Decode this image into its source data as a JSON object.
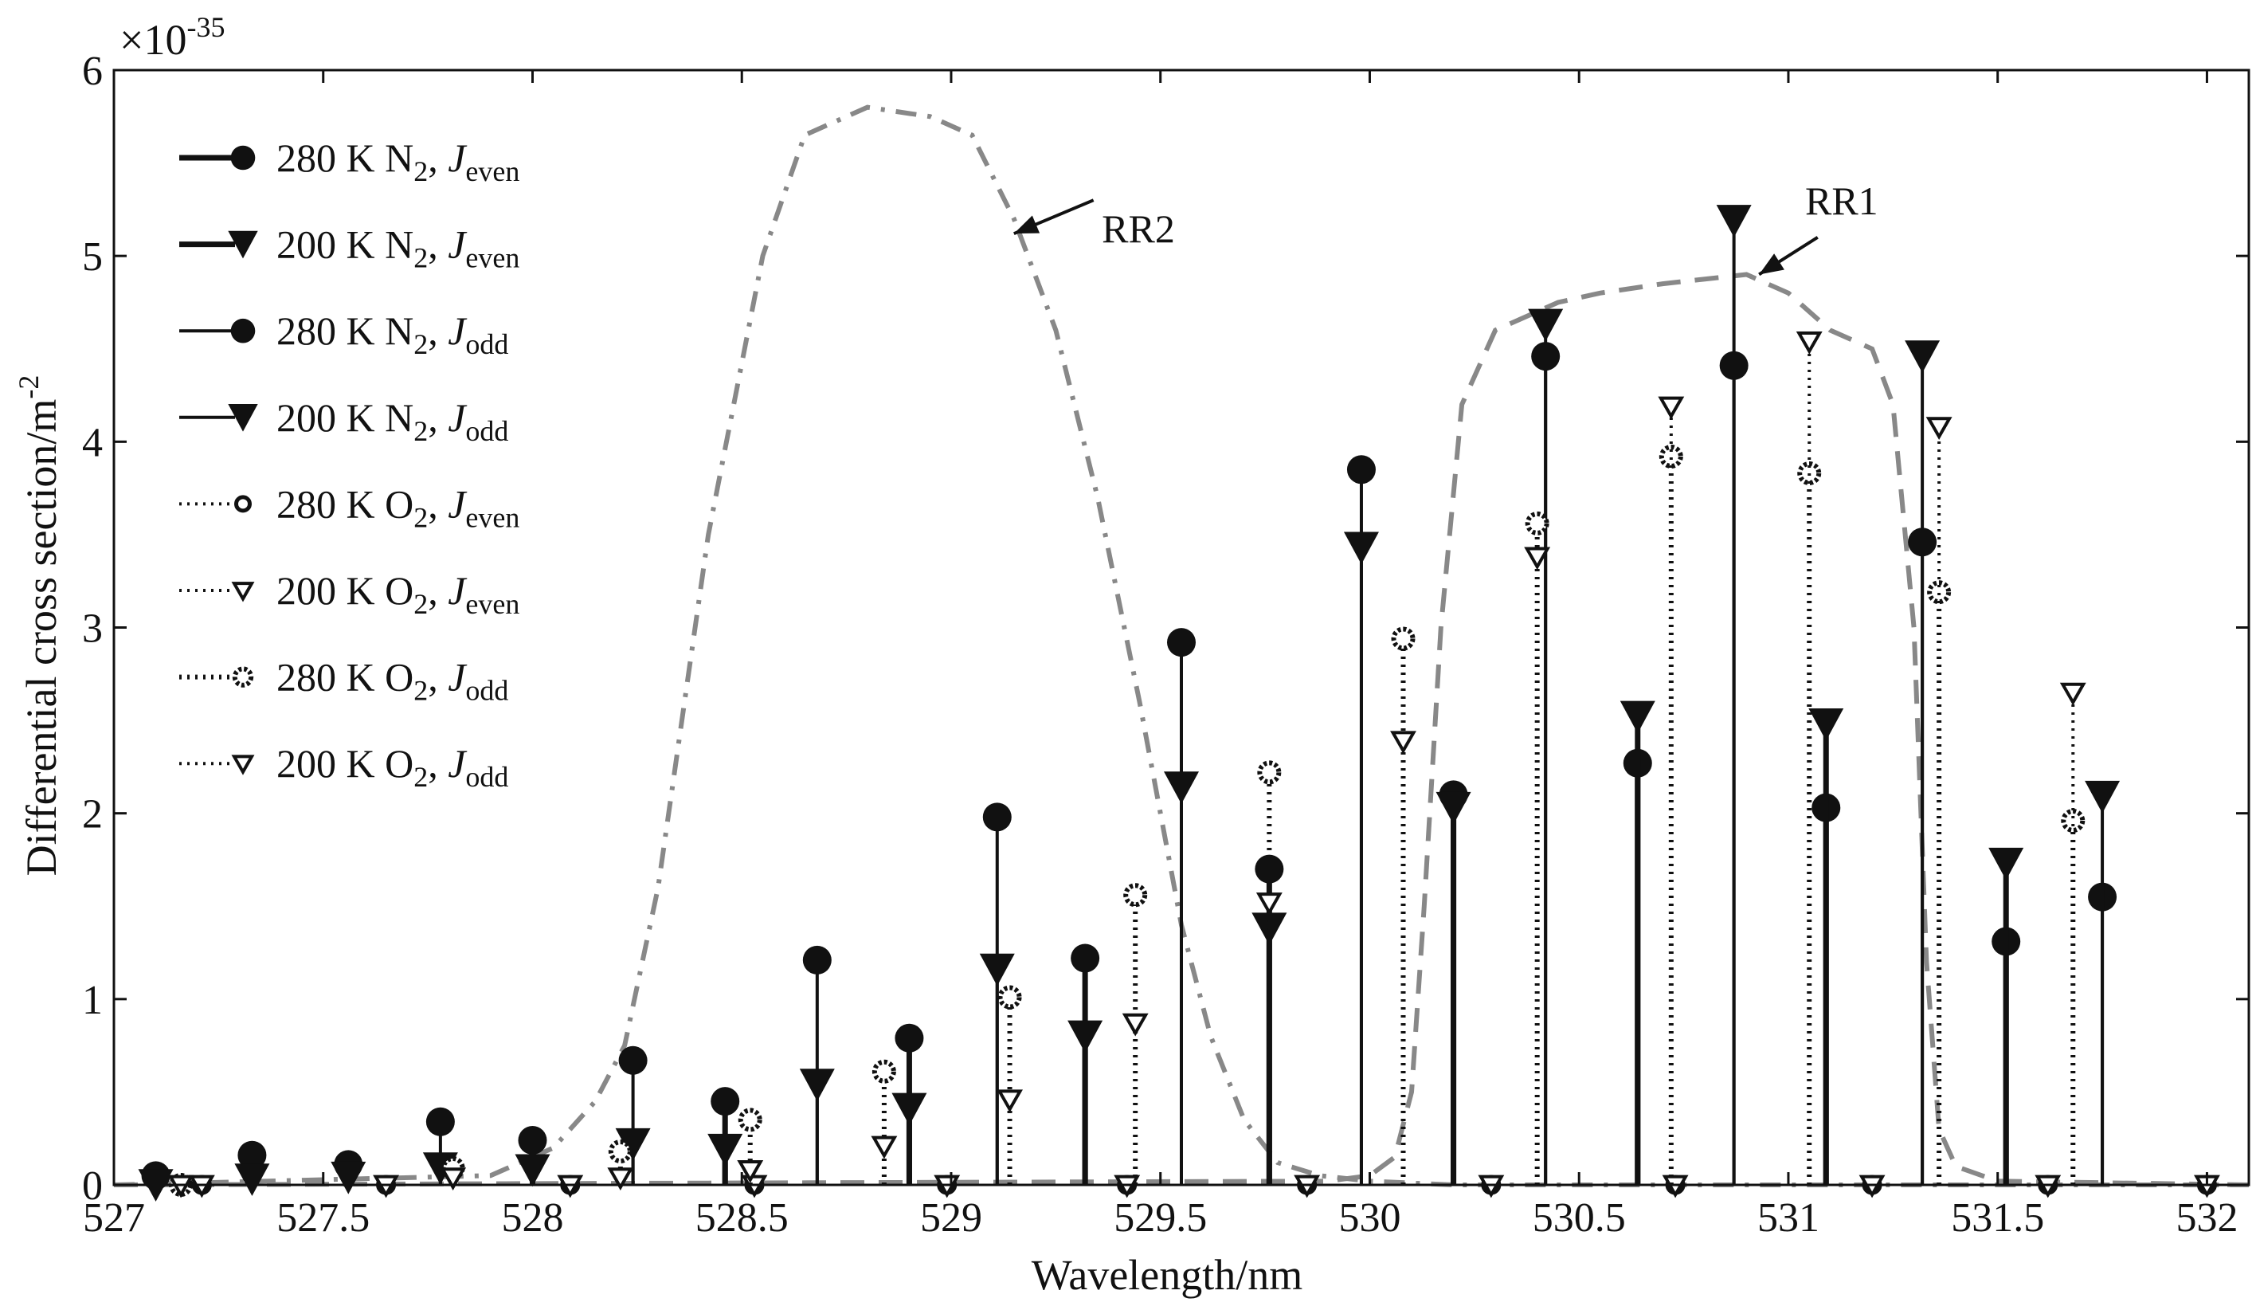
{
  "chart_data": {
    "type": "stem",
    "title": "",
    "xlabel": "Wavelength/nm",
    "ylabel": "Differential cross section/m",
    "ylabel_exponent": "-2",
    "y_multiplier_base": "×10",
    "y_multiplier_exp": "-35",
    "xlim": [
      527,
      532.1
    ],
    "ylim": [
      0,
      6
    ],
    "x_ticks": [
      527,
      527.5,
      528,
      528.5,
      529,
      529.5,
      530,
      530.5,
      531,
      531.5,
      532
    ],
    "x_tick_labels": [
      "527",
      "527.5",
      "528",
      "528.5",
      "529",
      "529.5",
      "530",
      "530.5",
      "531",
      "531.5",
      "532"
    ],
    "y_ticks": [
      0,
      1,
      2,
      3,
      4,
      5,
      6
    ],
    "y_tick_labels": [
      "0",
      "1",
      "2",
      "3",
      "4",
      "5",
      "6"
    ],
    "legend_position": "top-left",
    "series": [
      {
        "name": "280 K N2, Jeven",
        "species": "280 K N",
        "sub": "2",
        "J": "J",
        "Jsub": "even",
        "style": "solid-thick",
        "marker": "filled-circle",
        "points": [
          [
            527.1,
            0.05
          ],
          [
            527.56,
            0.11
          ],
          [
            528.0,
            0.24
          ],
          [
            528.46,
            0.45
          ],
          [
            528.9,
            0.79
          ],
          [
            529.32,
            1.22
          ],
          [
            529.76,
            1.7
          ],
          [
            530.2,
            2.1
          ],
          [
            530.64,
            2.27
          ],
          [
            531.09,
            2.03
          ],
          [
            531.52,
            1.31
          ]
        ]
      },
      {
        "name": "200 K N2, Jeven",
        "species": "200 K N",
        "sub": "2",
        "J": "J",
        "Jsub": "even",
        "style": "solid-thick",
        "marker": "filled-triangle",
        "points": [
          [
            527.1,
            0.0
          ],
          [
            527.56,
            0.04
          ],
          [
            528.0,
            0.08
          ],
          [
            528.46,
            0.19
          ],
          [
            528.9,
            0.41
          ],
          [
            529.32,
            0.8
          ],
          [
            529.76,
            1.38
          ],
          [
            530.2,
            2.03
          ],
          [
            530.64,
            2.52
          ],
          [
            531.09,
            2.48
          ],
          [
            531.52,
            1.73
          ]
        ]
      },
      {
        "name": "280 K N2, Jodd",
        "species": "280 K N",
        "sub": "2",
        "J": "J",
        "Jsub": "odd",
        "style": "solid-thin",
        "marker": "filled-circle",
        "points": [
          [
            527.33,
            0.16
          ],
          [
            527.78,
            0.34
          ],
          [
            528.24,
            0.67
          ],
          [
            528.68,
            1.21
          ],
          [
            529.11,
            1.98
          ],
          [
            529.55,
            2.92
          ],
          [
            529.98,
            3.85
          ],
          [
            530.42,
            4.46
          ],
          [
            530.87,
            4.41
          ],
          [
            531.32,
            3.46
          ],
          [
            531.75,
            1.55
          ]
        ]
      },
      {
        "name": "200 K N2, Jodd",
        "species": "200 K N",
        "sub": "2",
        "J": "J",
        "Jsub": "odd",
        "style": "solid-thin",
        "marker": "filled-triangle",
        "points": [
          [
            527.33,
            0.03
          ],
          [
            527.78,
            0.09
          ],
          [
            528.24,
            0.22
          ],
          [
            528.68,
            0.54
          ],
          [
            529.11,
            1.16
          ],
          [
            529.55,
            2.14
          ],
          [
            529.98,
            3.43
          ],
          [
            530.42,
            4.63
          ],
          [
            530.87,
            5.19
          ],
          [
            531.32,
            4.46
          ],
          [
            531.75,
            2.09
          ]
        ]
      },
      {
        "name": "280 K O2, Jeven",
        "species": "280 K O",
        "sub": "2",
        "J": "J",
        "Jsub": "even",
        "style": "dotted",
        "marker": "open-circle",
        "points": [
          [
            527.21,
            0.0
          ],
          [
            527.65,
            0.0
          ],
          [
            528.09,
            0.0
          ],
          [
            528.53,
            0.0
          ],
          [
            528.99,
            0.0
          ],
          [
            529.42,
            0.0
          ],
          [
            529.85,
            0.0
          ],
          [
            530.29,
            0.0
          ],
          [
            530.73,
            0.0
          ],
          [
            531.2,
            0.0
          ],
          [
            531.62,
            0.0
          ],
          [
            532.0,
            0.0
          ]
        ]
      },
      {
        "name": "200 K O2, Jeven",
        "species": "200 K O",
        "sub": "2",
        "J": "J",
        "Jsub": "even",
        "style": "dotted",
        "marker": "open-triangle",
        "points": [
          [
            527.21,
            0.0
          ],
          [
            527.65,
            0.0
          ],
          [
            528.09,
            0.0
          ],
          [
            528.53,
            0.0
          ],
          [
            528.99,
            0.0
          ],
          [
            529.42,
            0.0
          ],
          [
            529.85,
            0.0
          ],
          [
            530.29,
            0.0
          ],
          [
            530.73,
            0.0
          ],
          [
            531.2,
            0.0
          ],
          [
            531.62,
            0.0
          ],
          [
            532.0,
            0.0
          ]
        ]
      },
      {
        "name": "280 K O2, Jodd",
        "species": "280 K O",
        "sub": "2",
        "J": "J",
        "Jsub": "odd",
        "style": "dotted-thick",
        "marker": "dotted-circle",
        "points": [
          [
            527.16,
            0.0
          ],
          [
            527.81,
            0.09
          ],
          [
            528.21,
            0.18
          ],
          [
            528.52,
            0.35
          ],
          [
            528.84,
            0.61
          ],
          [
            529.14,
            1.01
          ],
          [
            529.44,
            1.56
          ],
          [
            529.76,
            2.22
          ],
          [
            530.08,
            2.94
          ],
          [
            530.4,
            3.56
          ],
          [
            530.72,
            3.92
          ],
          [
            531.05,
            3.83
          ],
          [
            531.36,
            3.19
          ],
          [
            531.68,
            1.96
          ]
        ]
      },
      {
        "name": "200 K O2, Jodd",
        "species": "200 K O",
        "sub": "2",
        "J": "J",
        "Jsub": "odd",
        "style": "dotted",
        "marker": "open-triangle",
        "points": [
          [
            527.16,
            0.0
          ],
          [
            527.81,
            0.04
          ],
          [
            528.21,
            0.04
          ],
          [
            528.52,
            0.08
          ],
          [
            528.84,
            0.21
          ],
          [
            529.14,
            0.46
          ],
          [
            529.44,
            0.87
          ],
          [
            529.76,
            1.52
          ],
          [
            530.08,
            2.39
          ],
          [
            530.4,
            3.38
          ],
          [
            530.72,
            4.19
          ],
          [
            531.05,
            4.54
          ],
          [
            531.36,
            4.08
          ],
          [
            531.68,
            2.65
          ]
        ]
      }
    ],
    "filters": [
      {
        "name": "RR2",
        "style": "dash-dot",
        "x": [
          527.0,
          527.9,
          528.05,
          528.15,
          528.22,
          528.3,
          528.42,
          528.55,
          528.65,
          528.8,
          528.95,
          529.05,
          529.15,
          529.25,
          529.35,
          529.45,
          529.55,
          529.62,
          529.7,
          529.78,
          529.88,
          530.0,
          530.1,
          530.2,
          530.4,
          532.1
        ],
        "y": [
          0.0,
          0.05,
          0.2,
          0.45,
          0.75,
          1.6,
          3.5,
          5.0,
          5.65,
          5.8,
          5.75,
          5.65,
          5.2,
          4.6,
          3.7,
          2.6,
          1.4,
          0.8,
          0.35,
          0.12,
          0.05,
          0.02,
          0.01,
          0.0,
          0.0,
          0.0
        ]
      },
      {
        "name": "RR1",
        "style": "dashed",
        "x": [
          527.0,
          529.9,
          530.0,
          530.06,
          530.1,
          530.13,
          530.17,
          530.22,
          530.3,
          530.45,
          530.55,
          530.7,
          530.9,
          531.0,
          531.1,
          531.2,
          531.25,
          531.3,
          531.33,
          531.36,
          531.4,
          531.5,
          532.1
        ],
        "y": [
          0.0,
          0.02,
          0.05,
          0.15,
          0.5,
          1.5,
          3.0,
          4.2,
          4.6,
          4.75,
          4.8,
          4.85,
          4.9,
          4.8,
          4.6,
          4.5,
          4.2,
          3.0,
          1.2,
          0.3,
          0.1,
          0.02,
          0.0
        ]
      }
    ],
    "annotations": [
      {
        "label": "RR2",
        "text_x": 529.36,
        "text_y": 5.15,
        "arrow_from": [
          529.34,
          5.3
        ],
        "arrow_to": [
          529.15,
          5.12
        ]
      },
      {
        "label": "RR1",
        "text_x": 531.04,
        "text_y": 5.3,
        "arrow_from": [
          531.07,
          5.1
        ],
        "arrow_to": [
          530.93,
          4.9
        ]
      }
    ]
  }
}
